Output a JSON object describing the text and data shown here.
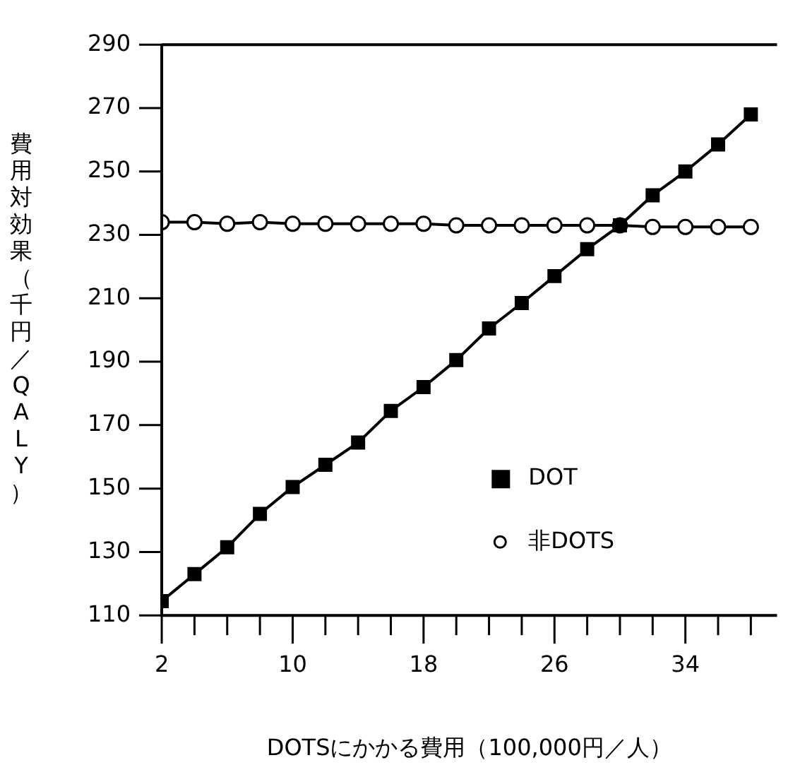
{
  "chart_data": {
    "type": "line",
    "xlabel": "DOTSにかかる費用（100,000円／人）",
    "ylabel": "費用対効果（千円／QALY）",
    "xlim": [
      2,
      39.6
    ],
    "xticks": [
      2,
      {
        "value": 4,
        "label": null
      },
      {
        "value": 6,
        "label": null
      },
      {
        "value": 8,
        "label": null
      },
      10,
      {
        "value": 12,
        "label": null
      },
      {
        "value": 14,
        "label": null
      },
      {
        "value": 16,
        "label": null
      },
      18,
      {
        "value": 20,
        "label": null
      },
      {
        "value": 22,
        "label": null
      },
      {
        "value": 24,
        "label": null
      },
      26,
      {
        "value": 28,
        "label": null
      },
      {
        "value": 30,
        "label": null
      },
      {
        "value": 32,
        "label": null
      },
      34,
      {
        "value": 36,
        "label": null
      },
      {
        "value": 38,
        "label": null
      }
    ],
    "ylim": [
      110,
      290
    ],
    "yticks": [
      110,
      130,
      150,
      170,
      190,
      210,
      230,
      250,
      270,
      290
    ],
    "grid": false,
    "legend": "right",
    "x": [
      2,
      4,
      6,
      8,
      10,
      12,
      14,
      16,
      18,
      20,
      22,
      24,
      26,
      28,
      30,
      32,
      34,
      36,
      38
    ],
    "series": [
      {
        "name": "DOT",
        "color": "#000000",
        "marker": "square",
        "values": [
          114.5,
          123,
          131.5,
          142,
          150.5,
          157.5,
          164.5,
          174.5,
          182,
          190.5,
          200.5,
          208.5,
          217,
          225.5,
          233,
          242.5,
          250,
          258.5,
          268
        ]
      },
      {
        "name": "非DOTS",
        "color": "#000000",
        "marker": "circle",
        "values": [
          234,
          234,
          233.5,
          234,
          233.5,
          233.5,
          233.5,
          233.5,
          233.5,
          233,
          233,
          233,
          233,
          233,
          233,
          232.5,
          232.5,
          232.5,
          232.5
        ]
      }
    ]
  }
}
